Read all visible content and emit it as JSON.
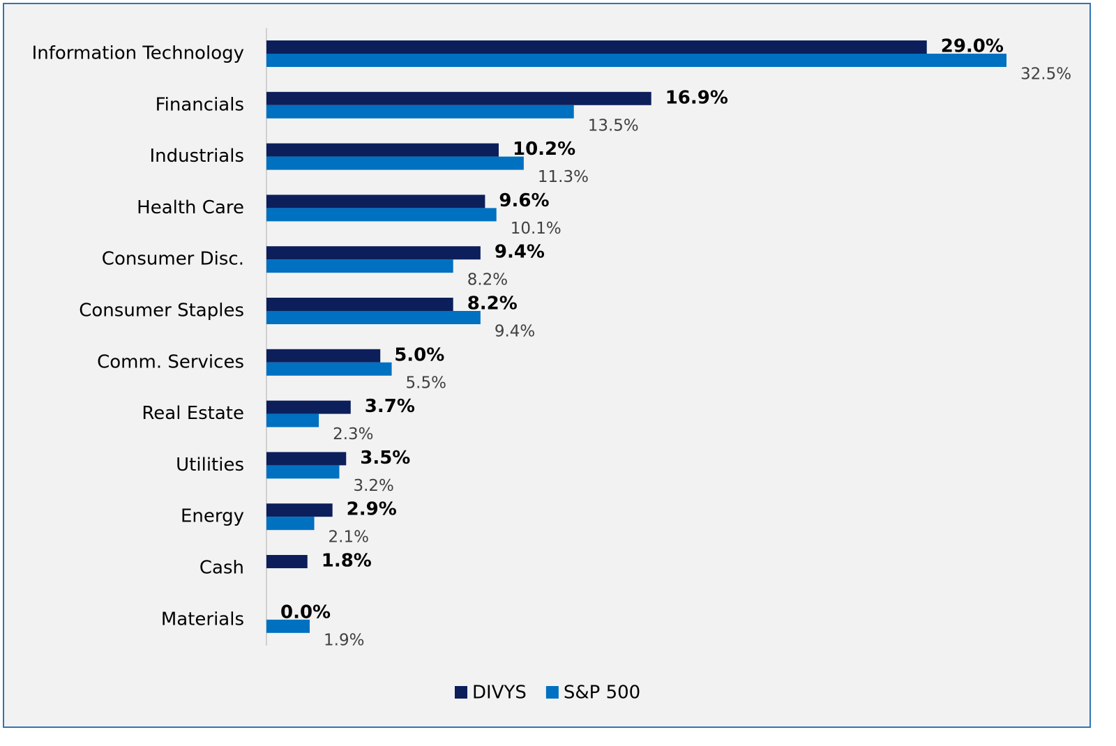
{
  "chart_data": {
    "type": "hbar",
    "categories": [
      "Information Technology",
      "Financials",
      "Industrials",
      "Health Care",
      "Consumer Disc.",
      "Consumer Staples",
      "Comm. Services",
      "Real Estate",
      "Utilities",
      "Energy",
      "Cash",
      "Materials"
    ],
    "series": [
      {
        "name": "DIVYS",
        "color": "#0c1f5b",
        "values": [
          29.0,
          16.9,
          10.2,
          9.6,
          9.4,
          8.2,
          5.0,
          3.7,
          3.5,
          2.9,
          1.8,
          0.0
        ],
        "value_labels": [
          "29.0%",
          "16.9%",
          "10.2%",
          "9.6%",
          "9.4%",
          "8.2%",
          "5.0%",
          "3.7%",
          "3.5%",
          "2.9%",
          "1.8%",
          "0.0%"
        ]
      },
      {
        "name": "S&P 500",
        "color": "#0070c0",
        "values": [
          32.5,
          13.5,
          11.3,
          10.1,
          8.2,
          9.4,
          5.5,
          2.3,
          3.2,
          2.1,
          null,
          1.9
        ],
        "value_labels": [
          "32.5%",
          "13.5%",
          "11.3%",
          "10.1%",
          "8.2%",
          "9.4%",
          "5.5%",
          "2.3%",
          "3.2%",
          "2.1%",
          null,
          "1.9%"
        ]
      }
    ],
    "legend": "bottom"
  }
}
